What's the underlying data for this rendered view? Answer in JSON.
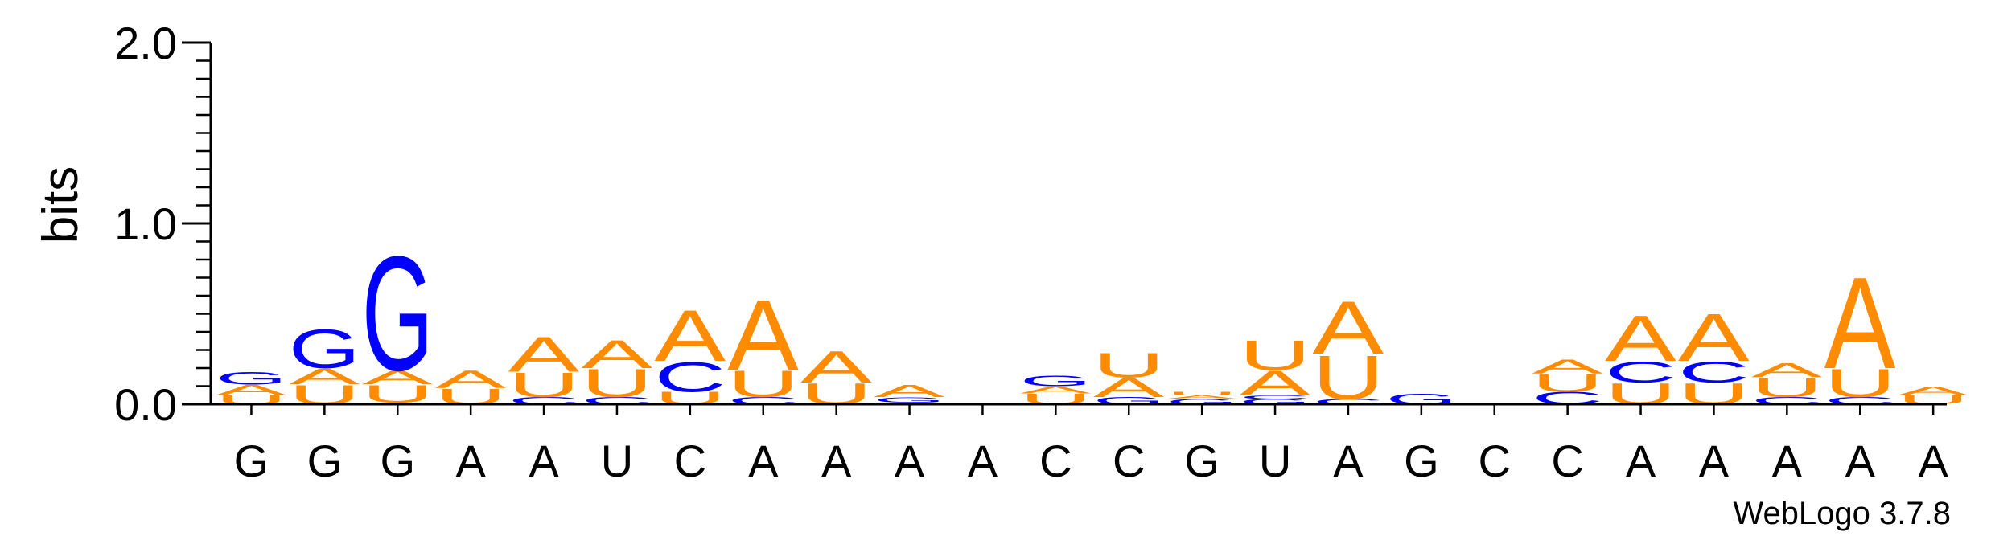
{
  "chart_data": {
    "type": "sequence-logo",
    "title": "",
    "xlabel": "",
    "ylabel": "bits",
    "ylim": [
      0,
      2
    ],
    "yticks": [
      "0.0",
      "1.0",
      "2.0"
    ],
    "colors": {
      "A": "#ff8c00",
      "U": "#ff8c00",
      "G": "#0000ff",
      "C": "#0000ff"
    },
    "sequence": [
      "G",
      "G",
      "G",
      "A",
      "A",
      "U",
      "C",
      "A",
      "A",
      "A",
      "A",
      "C",
      "C",
      "G",
      "U",
      "A",
      "G",
      "C",
      "C",
      "A",
      "A",
      "A",
      "A",
      "A"
    ],
    "positions": [
      {
        "stack": [
          {
            "letter": "U",
            "bits": 0.05
          },
          {
            "letter": "A",
            "bits": 0.06
          },
          {
            "letter": "G",
            "bits": 0.07
          }
        ]
      },
      {
        "stack": [
          {
            "letter": "U",
            "bits": 0.11
          },
          {
            "letter": "A",
            "bits": 0.09
          },
          {
            "letter": "G",
            "bits": 0.22
          }
        ]
      },
      {
        "stack": [
          {
            "letter": "C",
            "bits": 0.01
          },
          {
            "letter": "U",
            "bits": 0.1
          },
          {
            "letter": "A",
            "bits": 0.08
          },
          {
            "letter": "G",
            "bits": 0.65
          }
        ]
      },
      {
        "stack": [
          {
            "letter": "U",
            "bits": 0.09
          },
          {
            "letter": "A",
            "bits": 0.1
          }
        ]
      },
      {
        "stack": [
          {
            "letter": "C",
            "bits": 0.04
          },
          {
            "letter": "U",
            "bits": 0.14
          },
          {
            "letter": "A",
            "bits": 0.2
          }
        ]
      },
      {
        "stack": [
          {
            "letter": "C",
            "bits": 0.04
          },
          {
            "letter": "U",
            "bits": 0.16
          },
          {
            "letter": "A",
            "bits": 0.16
          }
        ]
      },
      {
        "stack": [
          {
            "letter": "U",
            "bits": 0.07
          },
          {
            "letter": "C",
            "bits": 0.17
          },
          {
            "letter": "A",
            "bits": 0.29
          }
        ]
      },
      {
        "stack": [
          {
            "letter": "C",
            "bits": 0.04
          },
          {
            "letter": "U",
            "bits": 0.15
          },
          {
            "letter": "A",
            "bits": 0.4
          }
        ]
      },
      {
        "stack": [
          {
            "letter": "U",
            "bits": 0.12
          },
          {
            "letter": "A",
            "bits": 0.18
          }
        ]
      },
      {
        "stack": [
          {
            "letter": "U",
            "bits": 0.01
          },
          {
            "letter": "G",
            "bits": 0.03
          },
          {
            "letter": "A",
            "bits": 0.07
          }
        ]
      },
      {
        "stack": []
      },
      {
        "stack": [
          {
            "letter": "U",
            "bits": 0.06
          },
          {
            "letter": "A",
            "bits": 0.04
          },
          {
            "letter": "G",
            "bits": 0.06
          }
        ]
      },
      {
        "stack": [
          {
            "letter": "G",
            "bits": 0.04
          },
          {
            "letter": "A",
            "bits": 0.11
          },
          {
            "letter": "U",
            "bits": 0.14
          }
        ]
      },
      {
        "stack": [
          {
            "letter": "G",
            "bits": 0.03
          },
          {
            "letter": "A",
            "bits": 0.02
          },
          {
            "letter": "U",
            "bits": 0.02
          }
        ]
      },
      {
        "stack": [
          {
            "letter": "G",
            "bits": 0.03
          },
          {
            "letter": "C",
            "bits": 0.02
          },
          {
            "letter": "A",
            "bits": 0.14
          },
          {
            "letter": "U",
            "bits": 0.17
          }
        ]
      },
      {
        "stack": [
          {
            "letter": "C",
            "bits": 0.03
          },
          {
            "letter": "U",
            "bits": 0.25
          },
          {
            "letter": "A",
            "bits": 0.3
          }
        ]
      },
      {
        "stack": [
          {
            "letter": "G",
            "bits": 0.06
          }
        ]
      },
      {
        "stack": []
      },
      {
        "stack": [
          {
            "letter": "C",
            "bits": 0.07
          },
          {
            "letter": "U",
            "bits": 0.1
          },
          {
            "letter": "A",
            "bits": 0.08
          }
        ]
      },
      {
        "stack": [
          {
            "letter": "U",
            "bits": 0.12
          },
          {
            "letter": "C",
            "bits": 0.12
          },
          {
            "letter": "A",
            "bits": 0.26
          }
        ]
      },
      {
        "stack": [
          {
            "letter": "U",
            "bits": 0.12
          },
          {
            "letter": "C",
            "bits": 0.12
          },
          {
            "letter": "A",
            "bits": 0.27
          }
        ]
      },
      {
        "stack": [
          {
            "letter": "C",
            "bits": 0.04
          },
          {
            "letter": "U",
            "bits": 0.11
          },
          {
            "letter": "A",
            "bits": 0.08
          }
        ]
      },
      {
        "stack": [
          {
            "letter": "C",
            "bits": 0.04
          },
          {
            "letter": "U",
            "bits": 0.16
          },
          {
            "letter": "A",
            "bits": 0.52
          }
        ]
      },
      {
        "stack": [
          {
            "letter": "U",
            "bits": 0.05
          },
          {
            "letter": "A",
            "bits": 0.05
          }
        ]
      }
    ]
  },
  "credit": "WebLogo 3.7.8"
}
